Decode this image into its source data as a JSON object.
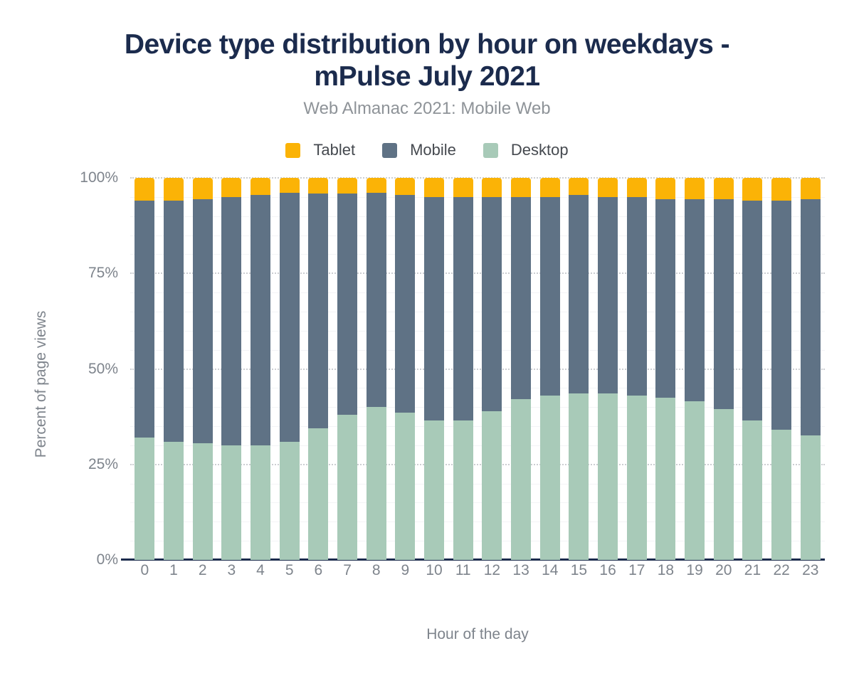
{
  "title": {
    "full": "Device type distribution by hour on weekdays - mPulse July 2021",
    "lines": [
      "Device type distribution by hour on weekdays -",
      "mPulse July 2021"
    ],
    "color": "#1b2b4d"
  },
  "subtitle": {
    "text": "Web Almanac 2021: Mobile Web"
  },
  "legend": {
    "position": "top",
    "items": [
      {
        "label": "Tablet",
        "color": "#fbb306"
      },
      {
        "label": "Mobile",
        "color": "#5f7285"
      },
      {
        "label": "Desktop",
        "color": "#a8cab8"
      }
    ]
  },
  "colors": {
    "title_navy": "#1b2b4d",
    "axis_text_gray": "#7e848c",
    "legend_text_gray": "#45494f",
    "subtitle_gray": "#8e9398",
    "axis_line_navy": "#1b2b4d",
    "major_grid": "#ccced2",
    "minor_grid": "#f3f4f6",
    "background": "#ffffff"
  },
  "chart_data": {
    "type": "bar",
    "stacked": true,
    "stack_total_percent": 100,
    "title": "Device type distribution by hour on weekdays - mPulse July 2021",
    "subtitle": "Web Almanac 2021: Mobile Web",
    "xlabel": "Hour of the day",
    "ylabel": "Percent of page views",
    "ylim": [
      0,
      100
    ],
    "y_ticks": [
      {
        "label": "0%",
        "value": 0
      },
      {
        "label": "25%",
        "value": 25
      },
      {
        "label": "50%",
        "value": 50
      },
      {
        "label": "75%",
        "value": 75
      },
      {
        "label": "100%",
        "value": 100
      }
    ],
    "minor_grid_step_percent": 5,
    "legend_position": "top",
    "categories": [
      "0",
      "1",
      "2",
      "3",
      "4",
      "5",
      "6",
      "7",
      "8",
      "9",
      "10",
      "11",
      "12",
      "13",
      "14",
      "15",
      "16",
      "17",
      "18",
      "19",
      "20",
      "21",
      "22",
      "23"
    ],
    "series": [
      {
        "name": "Desktop",
        "color": "#a8cab8",
        "values": [
          32,
          31,
          30.5,
          30,
          30,
          31,
          34.5,
          38,
          40,
          38.5,
          36.5,
          36.5,
          39,
          42,
          43,
          43.5,
          43.5,
          43,
          42.5,
          41.5,
          39.5,
          36.5,
          34,
          32.5
        ]
      },
      {
        "name": "Mobile",
        "color": "#5f7285",
        "values": [
          62,
          63,
          64,
          65,
          65.5,
          65,
          61.5,
          58,
          56,
          57,
          58.5,
          58.5,
          56,
          53,
          52,
          52,
          51.5,
          52,
          52,
          53,
          55,
          57.5,
          60,
          62
        ]
      },
      {
        "name": "Tablet",
        "color": "#fbb306",
        "values": [
          6,
          6,
          5.5,
          5,
          4.5,
          4,
          4,
          4,
          4,
          4.5,
          5,
          5,
          5,
          5,
          5,
          4.5,
          5,
          5,
          5.5,
          5.5,
          5.5,
          6,
          6,
          5.5
        ]
      }
    ]
  }
}
